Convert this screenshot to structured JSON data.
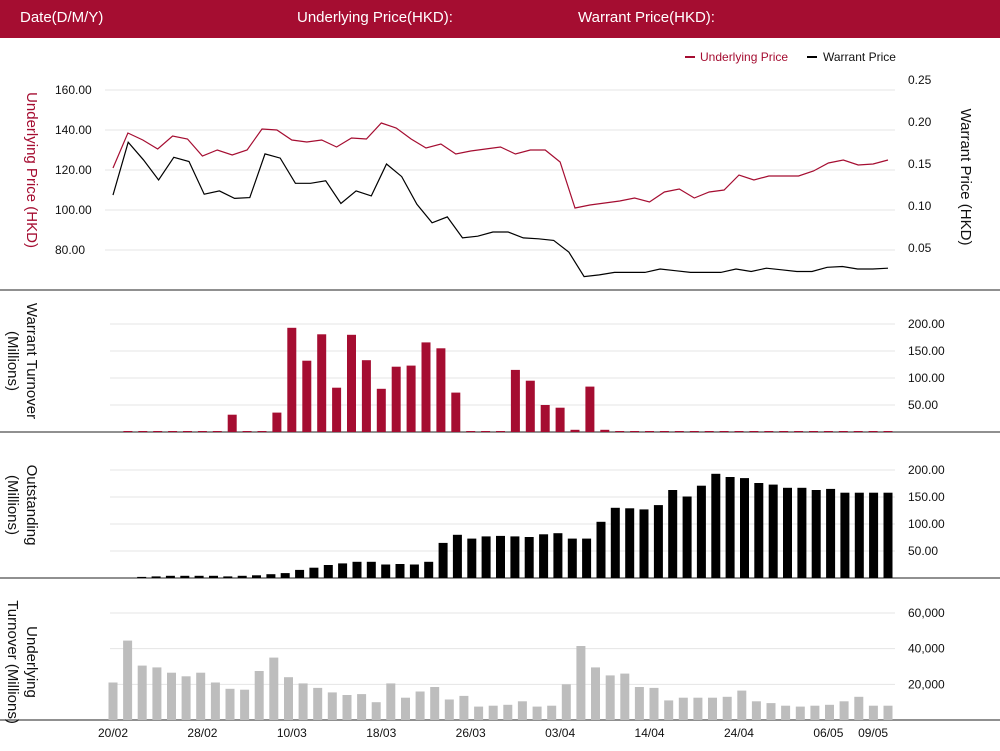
{
  "header": {
    "date_label": "Date(D/M/Y)",
    "underlying_label": "Underlying Price(HKD):",
    "warrant_label": "Warrant Price(HKD):"
  },
  "colors": {
    "brand": "#a50d31",
    "underlying_line": "#a50d31",
    "warrant_line": "#000000",
    "warrant_turnover_bar": "#a50d31",
    "outstanding_bar": "#000000",
    "underlying_turnover_bar": "#bdbdbd"
  },
  "legend": {
    "underlying": "Underlying Price",
    "warrant": "Warrant Price",
    "position": "top-right"
  },
  "x_tick_labels": [
    "20/02",
    "28/02",
    "10/03",
    "18/03",
    "26/03",
    "03/04",
    "14/04",
    "24/04",
    "06/05",
    "09/05"
  ],
  "chart_data": [
    {
      "type": "line",
      "ylabel_left": "Underlying Price (HKD)",
      "ylabel_right": "Warrant  Price (HKD)",
      "left_ticks": [
        "160.00",
        "140.00",
        "120.00",
        "100.00",
        "80.00"
      ],
      "right_ticks": [
        "0.25",
        "0.20",
        "0.15",
        "0.10",
        "0.05"
      ],
      "ylim_left": [
        60,
        165
      ],
      "ylim_right": [
        0,
        0.25
      ],
      "grid": true,
      "series": [
        {
          "name": "Underlying Price",
          "axis": "left",
          "values": [
            121,
            138.5,
            135,
            130.5,
            137,
            135.5,
            127,
            130,
            127.5,
            130,
            140.5,
            140,
            135,
            134,
            135,
            131.5,
            136,
            135.5,
            143.5,
            141,
            135.5,
            131,
            133,
            128,
            129.5,
            130.5,
            131.5,
            128,
            130,
            130,
            124,
            101,
            102.5,
            103.5,
            104.5,
            106,
            104,
            109,
            110.5,
            106,
            109,
            110,
            117.5,
            115,
            117,
            117,
            117,
            119.5,
            123.5,
            125,
            122.5,
            123,
            125
          ]
        },
        {
          "name": "Warrant Price",
          "axis": "right",
          "values": [
            0.113,
            0.176,
            0.155,
            0.131,
            0.158,
            0.153,
            0.114,
            0.118,
            0.109,
            0.11,
            0.162,
            0.157,
            0.127,
            0.127,
            0.13,
            0.103,
            0.118,
            0.112,
            0.15,
            0.135,
            0.102,
            0.08,
            0.087,
            0.062,
            0.064,
            0.069,
            0.069,
            0.062,
            0.061,
            0.059,
            0.045,
            0.016,
            0.018,
            0.021,
            0.021,
            0.021,
            0.025,
            0.023,
            0.021,
            0.021,
            0.021,
            0.025,
            0.022,
            0.026,
            0.024,
            0.022,
            0.022,
            0.027,
            0.028,
            0.025,
            0.025,
            0.026
          ]
        }
      ]
    },
    {
      "type": "bar",
      "ylabel": "Warrant  Turnover (Millions)",
      "ticks": [
        "200.00",
        "150.00",
        "100.00",
        "50.00"
      ],
      "ylim": [
        0,
        215
      ],
      "grid": true,
      "values": [
        0,
        1,
        1,
        1,
        1,
        1,
        1,
        1,
        32,
        1,
        1,
        36,
        193,
        132,
        181,
        82,
        180,
        133,
        80,
        121,
        123,
        166,
        155,
        73,
        1,
        1,
        1,
        115,
        95,
        50,
        45,
        4,
        84,
        4,
        1,
        1,
        1,
        1,
        1,
        1,
        1,
        1,
        1,
        1,
        1,
        1,
        1,
        1,
        1,
        1,
        1,
        1,
        1
      ]
    },
    {
      "type": "bar",
      "ylabel": "Outstanding (Millions)",
      "ticks": [
        "200.00",
        "150.00",
        "100.00",
        "50.00"
      ],
      "ylim": [
        0,
        215
      ],
      "grid": true,
      "values": [
        0,
        0,
        2,
        3,
        4,
        4,
        4,
        4,
        3,
        4,
        5,
        7,
        9,
        15,
        19,
        24,
        27,
        30,
        30,
        25,
        26,
        25,
        30,
        65,
        80,
        73,
        77,
        78,
        77,
        76,
        81,
        83,
        73,
        73,
        104,
        130,
        129,
        127,
        135,
        163,
        151,
        171,
        193,
        187,
        185,
        176,
        173,
        167,
        167,
        163,
        165,
        158,
        158,
        158,
        158
      ]
    },
    {
      "type": "bar",
      "ylabel": "Underlying Turnover (Millions)",
      "ticks": [
        "60,000",
        "40,000",
        "20,000"
      ],
      "ylim": [
        0,
        68000
      ],
      "grid": true,
      "values": [
        21000,
        44500,
        30500,
        29500,
        26500,
        24500,
        26500,
        21000,
        17500,
        17000,
        27500,
        35000,
        24000,
        20500,
        18000,
        15500,
        14000,
        14500,
        10000,
        20500,
        12500,
        16000,
        18500,
        11500,
        13500,
        7500,
        8000,
        8500,
        10500,
        7500,
        8000,
        20000,
        41500,
        29500,
        25000,
        26000,
        18500,
        18000,
        11000,
        12500,
        12500,
        12500,
        13000,
        16500,
        10500,
        9500,
        8000,
        7500,
        8000,
        8500,
        10500,
        13000,
        8000,
        8000
      ]
    }
  ]
}
